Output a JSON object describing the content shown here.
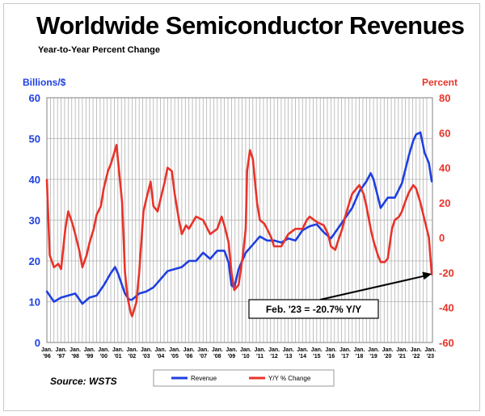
{
  "title": "Worldwide Semiconductor Revenues",
  "subtitle": "Year-to-Year Percent Change",
  "source": "Source: WSTS",
  "colors": {
    "revenue": "#1f3fe0",
    "yoy": "#e8332a",
    "left_axis": "#1f3fe0",
    "right_axis": "#e8332a"
  },
  "chart_data": {
    "type": "line",
    "left_axis": {
      "label": "Billions/$",
      "ylim": [
        0,
        60
      ],
      "ticks": [
        "0",
        "10",
        "20",
        "30",
        "40",
        "50",
        "60"
      ]
    },
    "right_axis": {
      "label": "Percent",
      "ylim": [
        -60,
        80
      ],
      "ticks": [
        "-60",
        "-40",
        "-20",
        "0",
        "20",
        "40",
        "60",
        "80"
      ]
    },
    "x_tick_labels": [
      [
        "Jan.",
        "'96"
      ],
      [
        "Jan.",
        "'97"
      ],
      [
        "Jan.",
        "'98"
      ],
      [
        "Jan.",
        "'99"
      ],
      [
        "Jan.",
        "'00"
      ],
      [
        "Jan.",
        "'01"
      ],
      [
        "Jan.",
        "'02"
      ],
      [
        "Jan.",
        "'03"
      ],
      [
        "Jan.",
        "'04"
      ],
      [
        "Jan.",
        "'05"
      ],
      [
        "Jan.",
        "'06"
      ],
      [
        "Jan.",
        "'07"
      ],
      [
        "Jan.",
        "'08"
      ],
      [
        "Jan.",
        "'09"
      ],
      [
        "Jan.",
        "'10"
      ],
      [
        "Jan.",
        "'11"
      ],
      [
        "Jan.",
        "'12"
      ],
      [
        "Jan.",
        "'13"
      ],
      [
        "Jan.",
        "'14"
      ],
      [
        "Jan.",
        "'15"
      ],
      [
        "Jan.",
        "'16"
      ],
      [
        "Jan.",
        "'17"
      ],
      [
        "Jan.",
        "'18"
      ],
      [
        "Jan.",
        "'19"
      ],
      [
        "Jan.",
        "'20"
      ],
      [
        "Jan.",
        "'21"
      ],
      [
        "Jan.",
        "'22"
      ],
      [
        "Jan.",
        "'23"
      ]
    ],
    "grid": true,
    "legend_position": "bottom",
    "series": [
      {
        "name": "Revenue",
        "axis": "left",
        "x": [
          1996.0,
          1996.5,
          1997.0,
          1997.5,
          1998.0,
          1998.5,
          1999.0,
          1999.5,
          2000.0,
          2000.5,
          2000.8,
          2001.0,
          2001.5,
          2001.8,
          2002.0,
          2002.5,
          2003.0,
          2003.5,
          2004.0,
          2004.5,
          2005.0,
          2005.5,
          2006.0,
          2006.5,
          2007.0,
          2007.5,
          2008.0,
          2008.5,
          2008.8,
          2009.0,
          2009.2,
          2009.5,
          2010.0,
          2010.5,
          2011.0,
          2011.5,
          2012.0,
          2012.5,
          2013.0,
          2013.5,
          2014.0,
          2014.5,
          2015.0,
          2015.5,
          2016.0,
          2016.5,
          2017.0,
          2017.5,
          2018.0,
          2018.5,
          2018.8,
          2019.0,
          2019.5,
          2020.0,
          2020.5,
          2021.0,
          2021.5,
          2021.8,
          2022.0,
          2022.3,
          2022.6,
          2022.9,
          2023.1
        ],
        "values": [
          12.5,
          10.0,
          11.0,
          11.5,
          12.0,
          9.5,
          11.0,
          11.5,
          14.0,
          17.0,
          18.5,
          17.0,
          12.0,
          10.5,
          10.5,
          12.0,
          12.5,
          13.5,
          15.5,
          17.5,
          18.0,
          18.5,
          20.0,
          20.0,
          22.0,
          20.5,
          22.5,
          22.5,
          19.5,
          14.0,
          13.5,
          18.0,
          22.0,
          24.0,
          26.0,
          25.0,
          25.0,
          24.5,
          25.5,
          25.0,
          27.5,
          28.5,
          29.0,
          27.0,
          25.5,
          28.0,
          30.5,
          33.0,
          37.0,
          39.5,
          41.5,
          40.0,
          33.0,
          35.5,
          35.5,
          39.0,
          46.0,
          49.5,
          51.0,
          51.5,
          46.5,
          44.0,
          39.5
        ]
      },
      {
        "name": "Y/Y % Change",
        "axis": "right",
        "x": [
          1996.0,
          1996.2,
          1996.5,
          1996.8,
          1997.0,
          1997.3,
          1997.5,
          1997.8,
          1998.0,
          1998.3,
          1998.5,
          1998.8,
          1999.0,
          1999.3,
          1999.5,
          1999.8,
          2000.0,
          2000.3,
          2000.5,
          2000.8,
          2000.9,
          2001.0,
          2001.3,
          2001.5,
          2001.7,
          2001.9,
          2002.0,
          2002.3,
          2002.5,
          2002.8,
          2003.0,
          2003.3,
          2003.5,
          2003.8,
          2004.0,
          2004.3,
          2004.5,
          2004.8,
          2005.0,
          2005.3,
          2005.5,
          2005.8,
          2006.0,
          2006.5,
          2007.0,
          2007.5,
          2008.0,
          2008.3,
          2008.5,
          2008.8,
          2009.0,
          2009.2,
          2009.5,
          2009.8,
          2010.0,
          2010.1,
          2010.3,
          2010.5,
          2010.8,
          2011.0,
          2011.3,
          2011.5,
          2011.8,
          2012.0,
          2012.5,
          2013.0,
          2013.5,
          2014.0,
          2014.3,
          2014.5,
          2015.0,
          2015.5,
          2015.8,
          2016.0,
          2016.3,
          2016.5,
          2016.8,
          2017.0,
          2017.3,
          2017.5,
          2017.8,
          2018.0,
          2018.3,
          2018.5,
          2018.8,
          2019.0,
          2019.3,
          2019.5,
          2019.8,
          2020.0,
          2020.3,
          2020.5,
          2020.8,
          2021.0,
          2021.3,
          2021.5,
          2021.8,
          2022.0,
          2022.3,
          2022.6,
          2022.9,
          2023.1
        ],
        "values": [
          33,
          -10,
          -17,
          -15,
          -18,
          5,
          15,
          8,
          2,
          -8,
          -17,
          -10,
          -3,
          5,
          13,
          18,
          28,
          38,
          42,
          50,
          53,
          45,
          20,
          -20,
          -35,
          -43,
          -45,
          -37,
          -20,
          15,
          22,
          32,
          18,
          15,
          22,
          32,
          40,
          38,
          25,
          10,
          2,
          7,
          5,
          12,
          10,
          2,
          5,
          12,
          7,
          -3,
          -20,
          -30,
          -27,
          -10,
          5,
          38,
          50,
          45,
          20,
          10,
          8,
          5,
          0,
          -5,
          -5,
          2,
          5,
          5,
          10,
          12,
          9,
          7,
          2,
          -5,
          -7,
          -2,
          5,
          12,
          20,
          25,
          28,
          30,
          25,
          18,
          5,
          -2,
          -10,
          -14,
          -14,
          -12,
          5,
          10,
          12,
          15,
          22,
          26,
          30,
          28,
          20,
          10,
          0,
          -21
        ]
      }
    ],
    "annotation": {
      "text": "Feb. '23 = -20.7% Y/Y",
      "points_to": {
        "x": 2023.1,
        "value": -20.7,
        "axis": "right"
      }
    }
  }
}
